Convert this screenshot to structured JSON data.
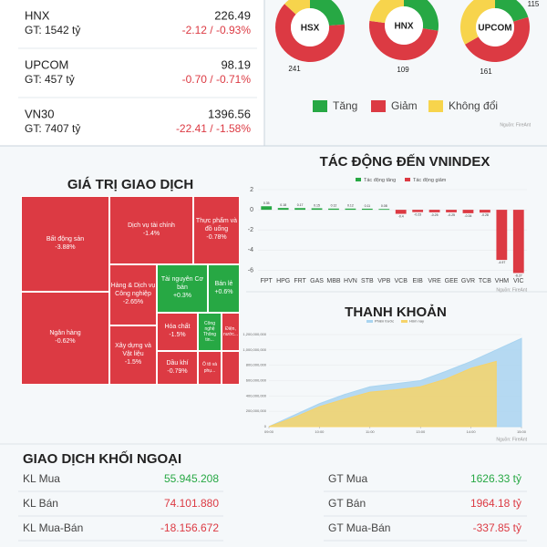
{
  "indices": [
    {
      "name": "HNX",
      "value": "226.49",
      "gt": "GT: 1542 tỷ",
      "change": "-2.12 / -0.93%"
    },
    {
      "name": "UPCOM",
      "value": "98.19",
      "gt": "GT: 457 tỷ",
      "change": "-0.70 / -0.71%"
    },
    {
      "name": "VN30",
      "value": "1396.56",
      "gt": "GT: 7407 tỷ",
      "change": "-22.41 / -1.58%"
    }
  ],
  "treemap": {
    "title": "GIÁ TRỊ GIAO DỊCH",
    "cells": [
      {
        "name": "Bất động sản",
        "change": "-3.88%",
        "color": "#dc3a43"
      },
      {
        "name": "Ngân hàng",
        "change": "-0.62%",
        "color": "#dc3a43"
      },
      {
        "name": "Dịch vụ tài chính",
        "change": "-1.4%",
        "color": "#dc3a43"
      },
      {
        "name": "Thực phẩm và đồ uống",
        "change": "-0.78%",
        "color": "#dc3a43"
      },
      {
        "name": "Hàng & Dịch vụ Công nghiệp",
        "change": "-2.65%",
        "color": "#dc3a43"
      },
      {
        "name": "Xây dựng và Vật liệu",
        "change": "-1.5%",
        "color": "#dc3a43"
      },
      {
        "name": "Tài nguyên Cơ bản",
        "change": "+0.3%",
        "color": "#27a844"
      },
      {
        "name": "Bán lẻ",
        "change": "+0.6%",
        "color": "#27a844"
      },
      {
        "name": "Hóa chất",
        "change": "-1.5%",
        "color": "#dc3a43"
      },
      {
        "name": "Dầu khí",
        "change": "-0.79%",
        "color": "#dc3a43"
      },
      {
        "name": "Công nghệ Thông tin...",
        "change": "",
        "color": "#27a844"
      },
      {
        "name": "Điện, nước...",
        "change": "",
        "color": "#dc3a43"
      },
      {
        "name": "Ô tô và phụ...",
        "change": "",
        "color": "#dc3a43"
      }
    ]
  },
  "chart_data": [
    {
      "type": "pie",
      "title": "HSX",
      "categories": [
        "Tăng",
        "Giảm",
        "Không đổi"
      ],
      "colors": [
        "#27a844",
        "#dc3a43",
        "#f7d44c"
      ],
      "values": [
        90,
        241,
        50
      ],
      "value_labels": [
        null,
        "241",
        null
      ],
      "source": "Nguồn: FireAnt"
    },
    {
      "type": "pie",
      "title": "HNX",
      "categories": [
        "Tăng",
        "Giảm",
        "Không đổi"
      ],
      "colors": [
        "#27a844",
        "#dc3a43",
        "#f7d44c"
      ],
      "values": [
        60,
        109,
        50
      ],
      "value_labels": [
        null,
        "109",
        null
      ]
    },
    {
      "type": "pie",
      "title": "UPCOM",
      "categories": [
        "Tăng",
        "Giảm",
        "Không đổi"
      ],
      "colors": [
        "#27a844",
        "#dc3a43",
        "#f7d44c"
      ],
      "values": [
        70,
        161,
        115
      ],
      "value_labels": [
        null,
        "161",
        "115"
      ]
    },
    {
      "type": "bar",
      "title": "TÁC ĐỘNG ĐẾN VNINDEX",
      "legend": [
        {
          "name": "Tác động tăng",
          "color": "#27a844"
        },
        {
          "name": "Tác động giảm",
          "color": "#dc3a43"
        }
      ],
      "categories": [
        "FPT",
        "HPG",
        "FRT",
        "GAS",
        "MBB",
        "HVN",
        "STB",
        "VPB",
        "VCB",
        "EIB",
        "VRE",
        "GEE",
        "GVR",
        "TCB",
        "VHM",
        "VIC"
      ],
      "values": [
        0.35,
        0.18,
        0.17,
        0.15,
        0.12,
        0.12,
        0.11,
        0.08,
        -0.4,
        -0.23,
        -0.25,
        -0.25,
        -0.34,
        -0.28,
        -4.97,
        -6.27
      ],
      "ylim": [
        -6.5,
        2
      ],
      "yticks": [
        2,
        0,
        -2,
        -4,
        -6
      ],
      "grid": true,
      "source": "Nguồn: FireAnt"
    },
    {
      "type": "area",
      "title": "THANH KHOẢN",
      "categories": [
        "09:00",
        null,
        "10:00",
        null,
        "11:00",
        null,
        "13:00",
        null,
        "14:00",
        null,
        "15:00"
      ],
      "series": [
        {
          "name": "Phiên trước",
          "color": "#a9d4f0",
          "values": [
            0,
            150000000,
            300000000,
            420000000,
            520000000,
            560000000,
            600000000,
            720000000,
            850000000,
            1000000000,
            1150000000
          ]
        },
        {
          "name": "Hôm nay",
          "color": "#f6d36a",
          "values": [
            0,
            120000000,
            260000000,
            360000000,
            450000000,
            480000000,
            520000000,
            620000000,
            760000000,
            850000000,
            null
          ]
        }
      ],
      "ylim": [
        0,
        1200000000
      ],
      "yticks": [
        0,
        {
          "value": 200000000,
          "label": "200,000,000"
        },
        {
          "value": 400000000,
          "label": "400,000,000"
        },
        {
          "value": 600000000,
          "label": "600,000,000"
        },
        {
          "value": 800000000,
          "label": "800,000,000"
        },
        {
          "value": 1000000000,
          "label": "1,000,000,000"
        },
        {
          "value": 1200000000,
          "label": "1,200,000,000"
        }
      ],
      "grid": true,
      "source": "Nguồn: FireAnt"
    }
  ],
  "foreign": {
    "title": "GIAO DỊCH KHỐI NGOẠI",
    "rows": [
      {
        "left_label": "KL Mua",
        "left_value": "55.945.208",
        "right_label": "GT Mua",
        "right_value": "1626.33 tỷ",
        "color": "#27a844"
      },
      {
        "left_label": "KL Bán",
        "left_value": "74.101.880",
        "right_label": "GT Bán",
        "right_value": "1964.18 tỷ",
        "color": "#dc3a43"
      },
      {
        "left_label": "KL Mua-Bán",
        "left_value": "-18.156.672",
        "right_label": "GT Mua-Bán",
        "right_value": "-337.85 tỷ",
        "color": "#dc3a43"
      }
    ]
  }
}
